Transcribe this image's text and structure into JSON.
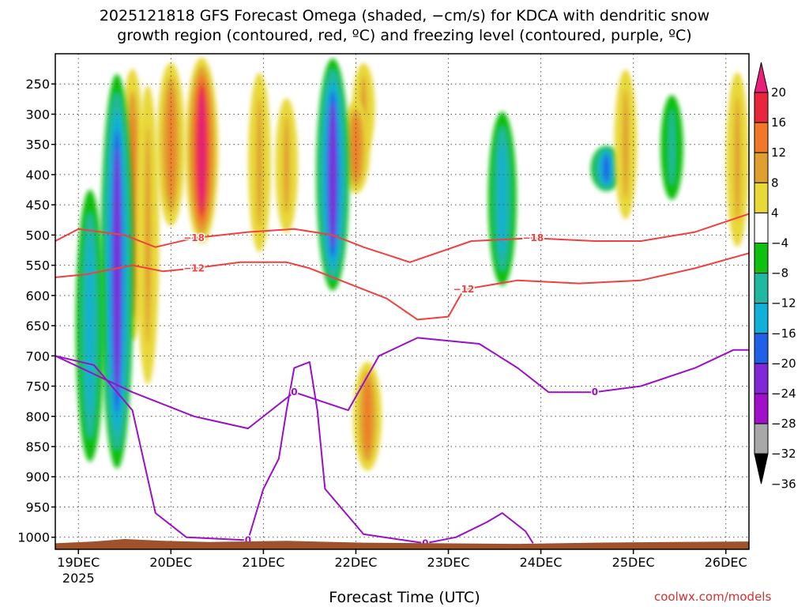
{
  "chart_data": {
    "type": "heatmap",
    "title_line1": "2025121818 GFS Forecast Omega (shaded, −cm/s) for KDCA with dendritic snow",
    "title_line2": "growth region (contoured, red, ºC) and freezing level (contoured, purple, ºC)",
    "xlabel": "Forecast Time (UTC)",
    "credit": "coolwx.com/models",
    "year_label": "2025",
    "y_ticks": [
      "250",
      "300",
      "350",
      "400",
      "450",
      "500",
      "550",
      "600",
      "650",
      "700",
      "750",
      "800",
      "850",
      "900",
      "950",
      "1000"
    ],
    "y_values": [
      250,
      300,
      350,
      400,
      450,
      500,
      550,
      600,
      650,
      700,
      750,
      800,
      850,
      900,
      950,
      1000
    ],
    "ylim_hPa": [
      200,
      1020
    ],
    "x_ticks": [
      "19DEC",
      "20DEC",
      "21DEC",
      "22DEC",
      "23DEC",
      "24DEC",
      "25DEC",
      "26DEC"
    ],
    "x_hours": [
      6,
      30,
      54,
      78,
      102,
      126,
      150,
      174
    ],
    "xlim_hours": [
      0,
      180
    ],
    "colorbar": {
      "labels": [
        "20",
        "16",
        "12",
        "8",
        "4",
        "−4",
        "−8",
        "−12",
        "−16",
        "−20",
        "−24",
        "−28",
        "−32",
        "−36"
      ],
      "colors": [
        "#e8207a",
        "#e8263c",
        "#f07828",
        "#e0a030",
        "#e8d838",
        "#ffffff",
        "#10c010",
        "#20b8a0",
        "#10b0d8",
        "#2060e8",
        "#8028d8",
        "#a010c8",
        "#a8a8a8",
        "#000000"
      ]
    },
    "omega_features": [
      {
        "hour": 20,
        "p_top": 200,
        "p_bot": 700,
        "value": 14
      },
      {
        "hour": 24,
        "p_top": 200,
        "p_bot": 800,
        "value": 10
      },
      {
        "hour": 30,
        "p_top": 200,
        "p_bot": 500,
        "value": 12
      },
      {
        "hour": 38,
        "p_top": 200,
        "p_bot": 520,
        "value": 20
      },
      {
        "hour": 53,
        "p_top": 200,
        "p_bot": 560,
        "value": 10
      },
      {
        "hour": 60,
        "p_top": 250,
        "p_bot": 520,
        "value": 8
      },
      {
        "hour": 80,
        "p_top": 200,
        "p_bot": 380,
        "value": 10
      },
      {
        "hour": 81,
        "p_top": 700,
        "p_bot": 900,
        "value": 12
      },
      {
        "hour": 78,
        "p_top": 270,
        "p_bot": 440,
        "value": 14
      },
      {
        "hour": 72,
        "p_top": 200,
        "p_bot": 600,
        "value": -20
      },
      {
        "hour": 16,
        "p_top": 220,
        "p_bot": 900,
        "value": -22
      },
      {
        "hour": 9,
        "p_top": 400,
        "p_bot": 900,
        "value": -14
      },
      {
        "hour": 116,
        "p_top": 280,
        "p_bot": 600,
        "value": -12
      },
      {
        "hour": 143,
        "p_top": 350,
        "p_bot": 430,
        "value": -16
      },
      {
        "hour": 160,
        "p_top": 250,
        "p_bot": 460,
        "value": -8
      },
      {
        "hour": 177,
        "p_top": 200,
        "p_bot": 550,
        "value": 10
      },
      {
        "hour": 148,
        "p_top": 200,
        "p_bot": 500,
        "value": 8
      }
    ],
    "contours_dgz": [
      {
        "label": "−18",
        "points": [
          [
            0,
            510
          ],
          [
            6,
            490
          ],
          [
            18,
            500
          ],
          [
            26,
            520
          ],
          [
            36,
            505
          ],
          [
            50,
            495
          ],
          [
            62,
            490
          ],
          [
            72,
            500
          ],
          [
            80,
            520
          ],
          [
            92,
            545
          ],
          [
            108,
            510
          ],
          [
            124,
            505
          ],
          [
            140,
            510
          ],
          [
            152,
            510
          ],
          [
            166,
            495
          ],
          [
            180,
            465
          ]
        ]
      },
      {
        "label": "−12",
        "points": [
          [
            0,
            570
          ],
          [
            8,
            565
          ],
          [
            20,
            550
          ],
          [
            28,
            560
          ],
          [
            36,
            555
          ],
          [
            48,
            545
          ],
          [
            60,
            545
          ],
          [
            66,
            555
          ],
          [
            76,
            580
          ],
          [
            86,
            605
          ],
          [
            94,
            640
          ],
          [
            102,
            635
          ],
          [
            106,
            590
          ],
          [
            120,
            575
          ],
          [
            136,
            580
          ],
          [
            152,
            575
          ],
          [
            166,
            555
          ],
          [
            180,
            530
          ]
        ]
      }
    ],
    "contours_freezing": [
      {
        "label": "0",
        "points": [
          [
            0,
            700
          ],
          [
            10,
            715
          ],
          [
            20,
            790
          ],
          [
            26,
            960
          ],
          [
            34,
            1000
          ],
          [
            50,
            1005
          ],
          [
            54,
            920
          ],
          [
            58,
            870
          ],
          [
            60,
            790
          ],
          [
            62,
            720
          ],
          [
            66,
            710
          ],
          [
            68,
            790
          ],
          [
            70,
            920
          ],
          [
            80,
            995
          ],
          [
            96,
            1010
          ],
          [
            104,
            1000
          ],
          [
            112,
            975
          ],
          [
            116,
            960
          ],
          [
            122,
            990
          ],
          [
            124,
            1010
          ]
        ]
      },
      {
        "label": "0",
        "points": [
          [
            0,
            700
          ],
          [
            20,
            760
          ],
          [
            36,
            800
          ],
          [
            50,
            820
          ],
          [
            62,
            760
          ],
          [
            76,
            790
          ],
          [
            84,
            700
          ],
          [
            94,
            670
          ],
          [
            110,
            680
          ],
          [
            120,
            720
          ],
          [
            128,
            760
          ],
          [
            140,
            760
          ],
          [
            152,
            750
          ],
          [
            166,
            720
          ],
          [
            176,
            690
          ],
          [
            180,
            690
          ]
        ]
      }
    ],
    "contour_label_texts": {
      "dgz_a": "−18",
      "dgz_b": "−12",
      "frz": "0"
    }
  }
}
